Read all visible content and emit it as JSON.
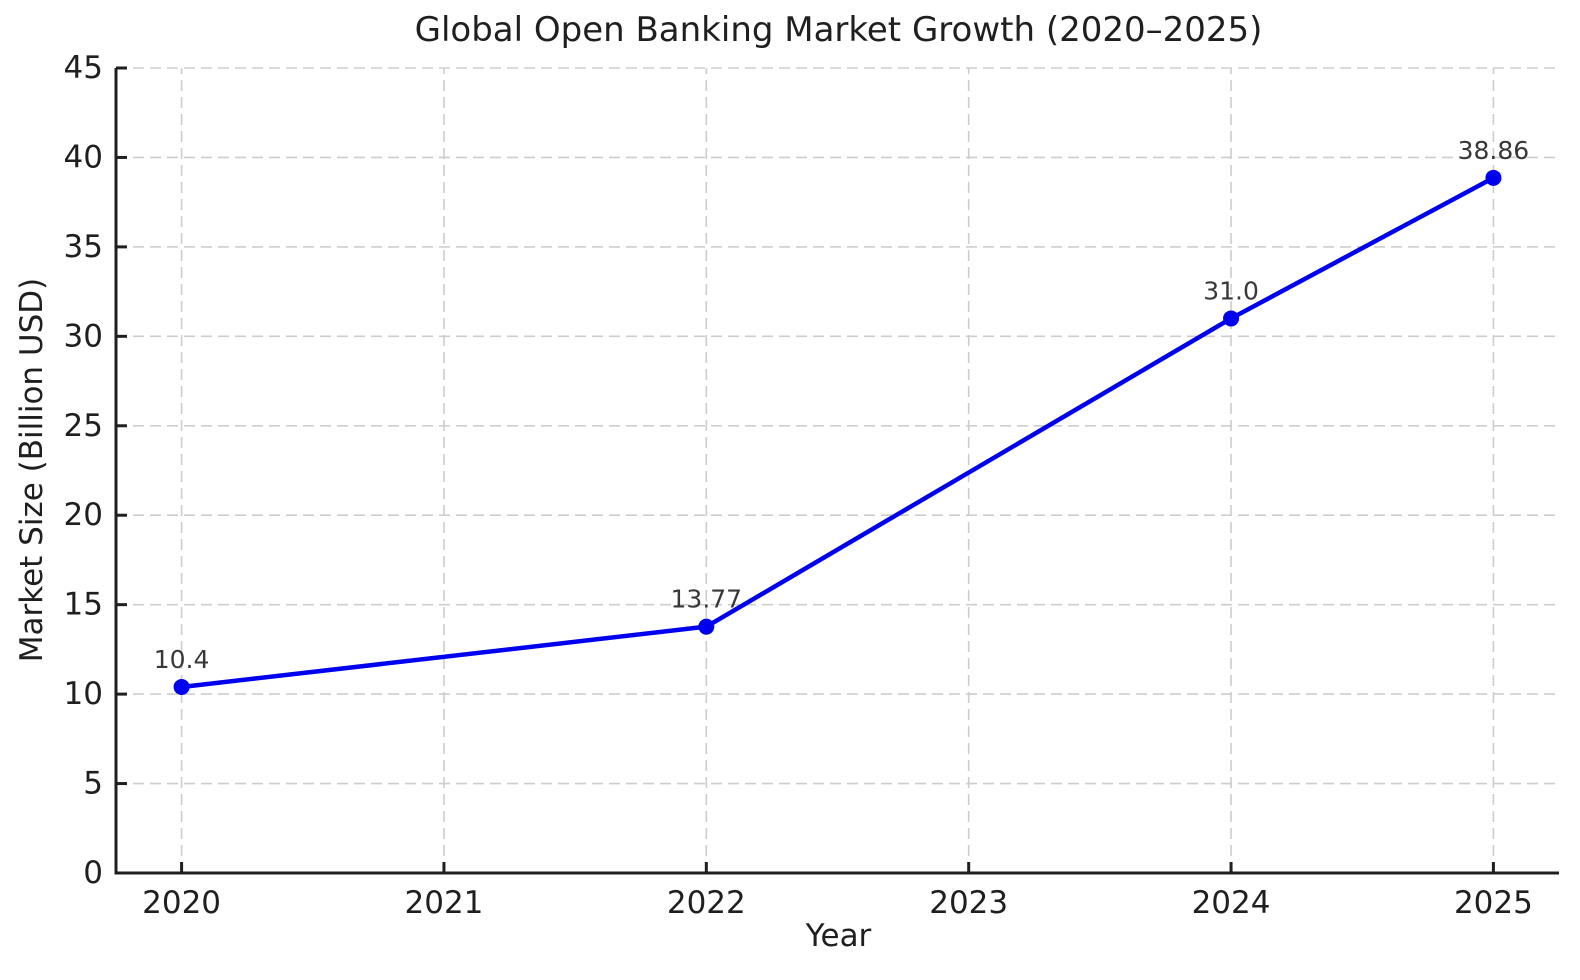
{
  "chart_data": {
    "type": "line",
    "title": "Global Open Banking Market Growth (2020–2025)",
    "xlabel": "Year",
    "ylabel": "Market Size (Billion USD)",
    "series": [
      {
        "name": "Market Size",
        "x": [
          2020,
          2022,
          2024,
          2025
        ],
        "y": [
          10.4,
          13.77,
          31.0,
          38.86
        ],
        "point_labels": [
          "10.4",
          "13.77",
          "31.0",
          "38.86"
        ],
        "color": "#0000f0"
      }
    ],
    "x_ticks": [
      2020,
      2021,
      2022,
      2023,
      2024,
      2025
    ],
    "x_tick_labels": [
      "2020",
      "2021",
      "2022",
      "2023",
      "2024",
      "2025"
    ],
    "y_ticks": [
      0,
      5,
      10,
      15,
      20,
      25,
      30,
      35,
      40,
      45
    ],
    "y_tick_labels": [
      "0",
      "5",
      "10",
      "15",
      "20",
      "25",
      "30",
      "35",
      "40",
      "45"
    ],
    "xlim": [
      2019.75,
      2025.25
    ],
    "ylim": [
      0,
      45
    ],
    "grid": true,
    "legend": "none",
    "colors": {
      "line": "#0000f0",
      "grid": "#cdcdcd",
      "axis": "#1f1f1f",
      "tick_text": "#1f1f1f",
      "annotation_text": "#383838",
      "background": "#ffffff"
    }
  }
}
